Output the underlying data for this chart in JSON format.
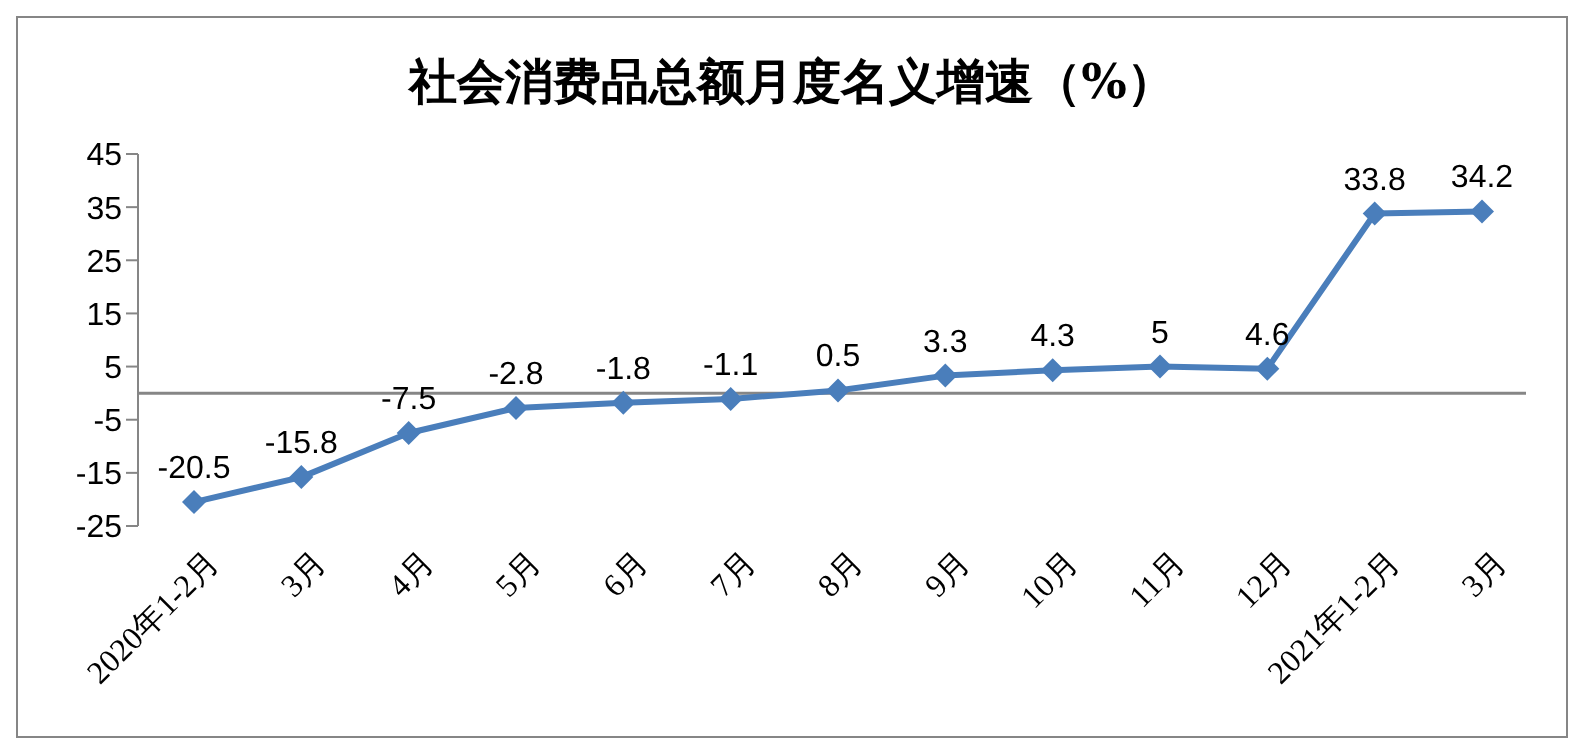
{
  "chart_data": {
    "type": "line",
    "title": "社会消费品总额月度名义增速（%）",
    "categories": [
      "2020年1-2月",
      "3月",
      "4月",
      "5月",
      "6月",
      "7月",
      "8月",
      "9月",
      "10月",
      "11月",
      "12月",
      "2021年1-2月",
      "3月"
    ],
    "series": [
      {
        "color": "#4a7ebb",
        "values": [
          -20.5,
          -15.8,
          -7.5,
          -2.8,
          -1.8,
          -1.1,
          0.5,
          3.3,
          4.3,
          5,
          4.6,
          33.8,
          34.2
        ]
      }
    ],
    "ylim": [
      -25,
      45
    ],
    "yticks": [
      -25,
      -15,
      -5,
      5,
      15,
      25,
      35,
      45
    ],
    "ref_lines": [
      {
        "axis": "y",
        "value": 0,
        "color": "#868686"
      }
    ],
    "grid": false,
    "legend": false,
    "marker": "diamond",
    "line_style": "solid",
    "data_labels": true
  }
}
